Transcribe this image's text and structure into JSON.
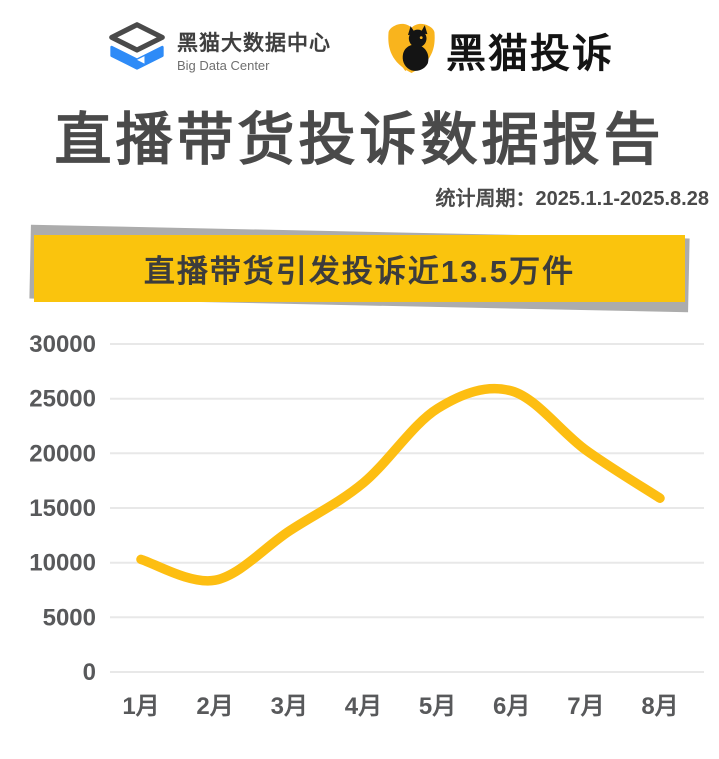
{
  "header": {
    "big_data_center_logo": {
      "title": "黑猫大数据中心",
      "subtitle": "Big Data Center"
    },
    "heimao_tousu_logo": {
      "title": "黑猫投诉"
    }
  },
  "report": {
    "title": "直播带货投诉数据报告",
    "period": "统计周期：2025.1.1-2025.8.28",
    "banner": "直播带货引发投诉近13.5万件"
  },
  "colors": {
    "banner_yellow": "#FAC40D",
    "banner_shadow": "#ACACAC",
    "line_yellow": "#FDBE12",
    "shield_yellow": "#F9B41D",
    "logo_blue": "#2E8BF7",
    "logo_dark": "#4A4A4A",
    "title_gray": "#4A4A4A",
    "axis_label": "#58595B",
    "grid_line": "#E8E8E8"
  },
  "chart_data": {
    "type": "line",
    "title": "直播带货引发投诉近13.5万件",
    "categories": [
      "1月",
      "2月",
      "3月",
      "4月",
      "5月",
      "6月",
      "7月",
      "8月"
    ],
    "values": [
      10300,
      8400,
      12900,
      17300,
      24100,
      25700,
      20300,
      15900
    ],
    "ylim": [
      0,
      30000
    ],
    "yticks": [
      0,
      5000,
      10000,
      15000,
      20000,
      25000,
      30000
    ],
    "grid": true,
    "smooth": true,
    "legend": false
  }
}
